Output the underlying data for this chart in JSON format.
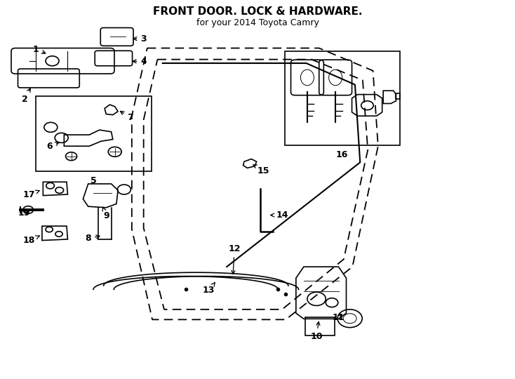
{
  "title": "FRONT DOOR. LOCK & HARDWARE.",
  "subtitle": "for your 2014 Toyota Camry",
  "bg_color": "#ffffff",
  "line_color": "#000000",
  "fig_width": 7.34,
  "fig_height": 5.4,
  "dpi": 100
}
